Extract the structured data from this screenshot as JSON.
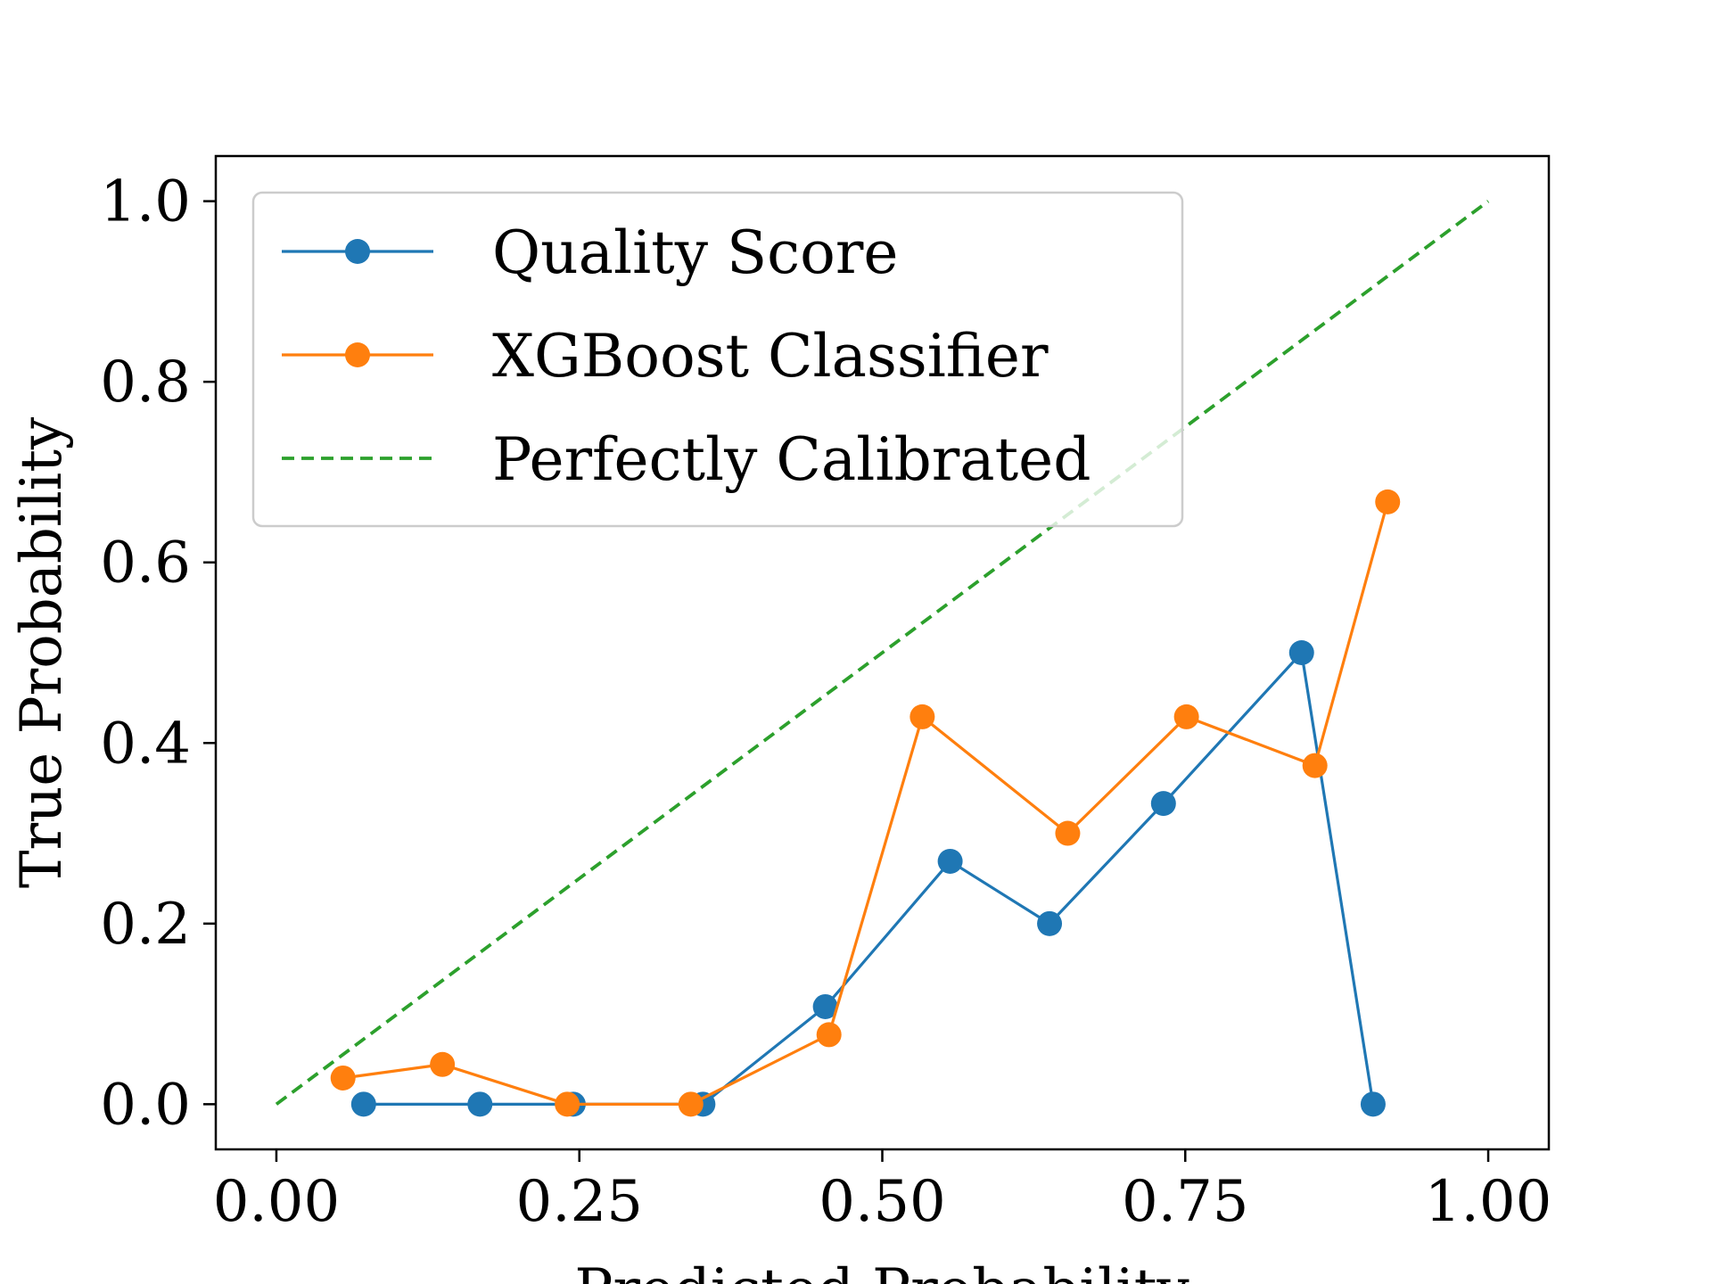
{
  "chart_data": {
    "type": "line",
    "xlabel": "Predicted Probability",
    "ylabel": "True Probability",
    "xlim": [
      -0.05,
      1.05
    ],
    "ylim": [
      -0.05,
      1.05
    ],
    "xticks": [
      0.0,
      0.25,
      0.5,
      0.75,
      1.0
    ],
    "xtick_labels": [
      "0.00",
      "0.25",
      "0.50",
      "0.75",
      "1.00"
    ],
    "yticks": [
      0.0,
      0.2,
      0.4,
      0.6,
      0.8,
      1.0
    ],
    "ytick_labels": [
      "0.0",
      "0.2",
      "0.4",
      "0.6",
      "0.8",
      "1.0"
    ],
    "grid": false,
    "legend_position": "top-left",
    "series": [
      {
        "name": "Quality Score",
        "color": "#1f77b4",
        "style": "solid-marker",
        "x": [
          0.072,
          0.168,
          0.245,
          0.352,
          0.453,
          0.556,
          0.638,
          0.732,
          0.846,
          0.905
        ],
        "y": [
          0.0,
          0.0,
          0.0,
          0.0,
          0.108,
          0.269,
          0.2,
          0.333,
          0.5,
          0.0
        ]
      },
      {
        "name": "XGBoost Classifier",
        "color": "#ff7f0e",
        "style": "solid-marker",
        "x": [
          0.055,
          0.137,
          0.24,
          0.342,
          0.456,
          0.533,
          0.653,
          0.751,
          0.857,
          0.917
        ],
        "y": [
          0.029,
          0.044,
          0.0,
          0.0,
          0.077,
          0.429,
          0.3,
          0.429,
          0.375,
          0.667
        ]
      },
      {
        "name": "Perfectly Calibrated",
        "color": "#2ca02c",
        "style": "dashed",
        "x": [
          0.0,
          1.0
        ],
        "y": [
          0.0,
          1.0
        ]
      }
    ]
  }
}
